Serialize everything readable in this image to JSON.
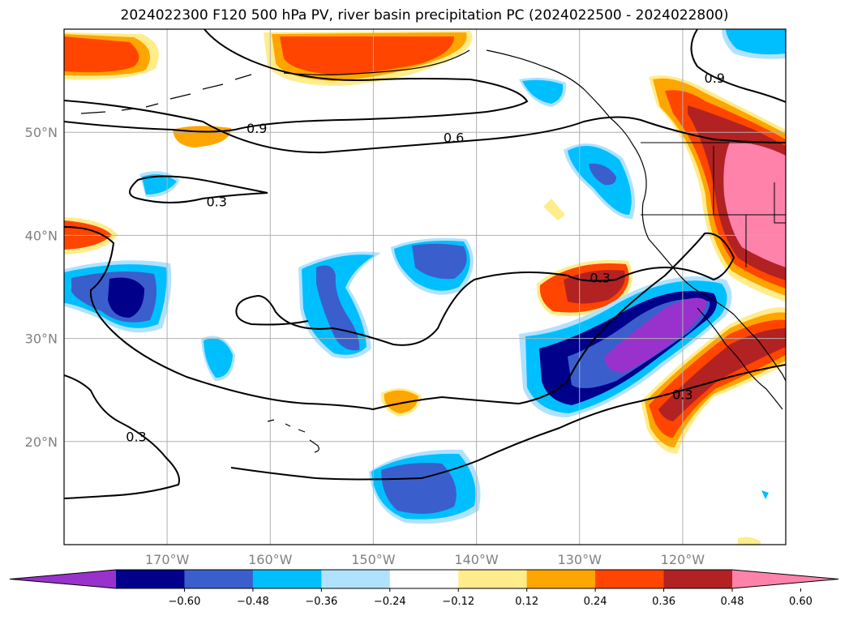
{
  "title": "2024022300 F120 500 hPa PV, river basin precipitation PC (2024022500 - 2024022800)",
  "map": {
    "projection": "lat-lon",
    "lon_range": [
      -180,
      -110
    ],
    "lat_range": [
      10,
      60
    ],
    "gridlines": true,
    "lat_ticks": [
      {
        "lat": 20,
        "label": "20°N"
      },
      {
        "lat": 30,
        "label": "30°N"
      },
      {
        "lat": 40,
        "label": "40°N"
      },
      {
        "lat": 50,
        "label": "50°N"
      }
    ],
    "lon_ticks": [
      {
        "lon": -170,
        "label": "170°W"
      },
      {
        "lon": -160,
        "label": "160°W"
      },
      {
        "lon": -150,
        "label": "150°W"
      },
      {
        "lon": -140,
        "label": "140°W"
      },
      {
        "lon": -130,
        "label": "130°W"
      },
      {
        "lon": -120,
        "label": "120°W"
      }
    ],
    "contour_labels": [
      {
        "text": "0.9",
        "lon": -161.3,
        "lat": 50.4
      },
      {
        "text": "0.9",
        "lon": -116.9,
        "lat": 55.3
      },
      {
        "text": "0.6",
        "lon": -142.2,
        "lat": 49.5
      },
      {
        "text": "0.3",
        "lon": -165.2,
        "lat": 43.3
      },
      {
        "text": "0.3",
        "lon": -128.0,
        "lat": 35.9
      },
      {
        "text": "0.3",
        "lon": -120.0,
        "lat": 24.6
      },
      {
        "text": "0.3",
        "lon": -173.0,
        "lat": 20.5
      }
    ]
  },
  "colorbar": {
    "tick_labels": [
      "−0.60",
      "−0.48",
      "−0.36",
      "−0.24",
      "−0.12",
      "0.12",
      "0.24",
      "0.36",
      "0.48",
      "0.60"
    ],
    "colors": [
      "#9932cc",
      "#00008b",
      "#3a5fcd",
      "#00bfff",
      "#b0e2ff",
      "#ffffff",
      "#ffec8b",
      "#ffa500",
      "#ff4500",
      "#b22222",
      "#ff82ab"
    ]
  }
}
